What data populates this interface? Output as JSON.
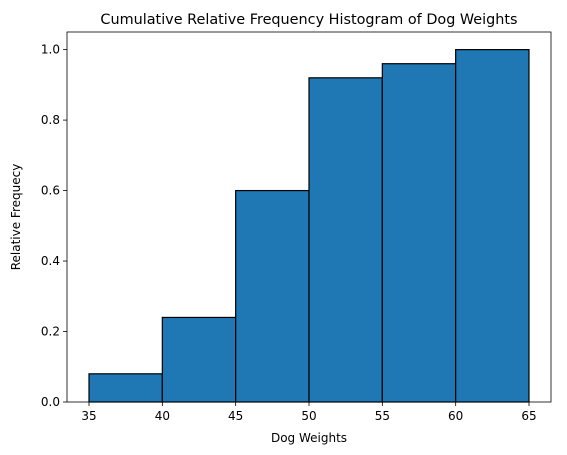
{
  "chart_data": {
    "type": "bar",
    "title": "Cumulative Relative Frequency Histogram of Dog Weights",
    "xlabel": "Dog Weights",
    "ylabel": "Relative Frequecy",
    "bins": [
      {
        "start": 35,
        "end": 40,
        "value": 0.08
      },
      {
        "start": 40,
        "end": 45,
        "value": 0.24
      },
      {
        "start": 45,
        "end": 50,
        "value": 0.6
      },
      {
        "start": 50,
        "end": 55,
        "value": 0.92
      },
      {
        "start": 55,
        "end": 60,
        "value": 0.96
      },
      {
        "start": 60,
        "end": 65,
        "value": 1.0
      }
    ],
    "xlim": [
      33.5,
      66.5
    ],
    "ylim": [
      0,
      1.05
    ],
    "xticks": [
      35,
      40,
      45,
      50,
      55,
      60,
      65
    ],
    "yticks": [
      0.0,
      0.2,
      0.4,
      0.6,
      0.8,
      1.0
    ],
    "xtick_labels": [
      "35",
      "40",
      "45",
      "50",
      "55",
      "60",
      "65"
    ],
    "ytick_labels": [
      "0.0",
      "0.2",
      "0.4",
      "0.6",
      "0.8",
      "1.0"
    ],
    "bar_color": "#1f77b4",
    "edge_color": "#000000",
    "grid": false,
    "legend": "none"
  }
}
